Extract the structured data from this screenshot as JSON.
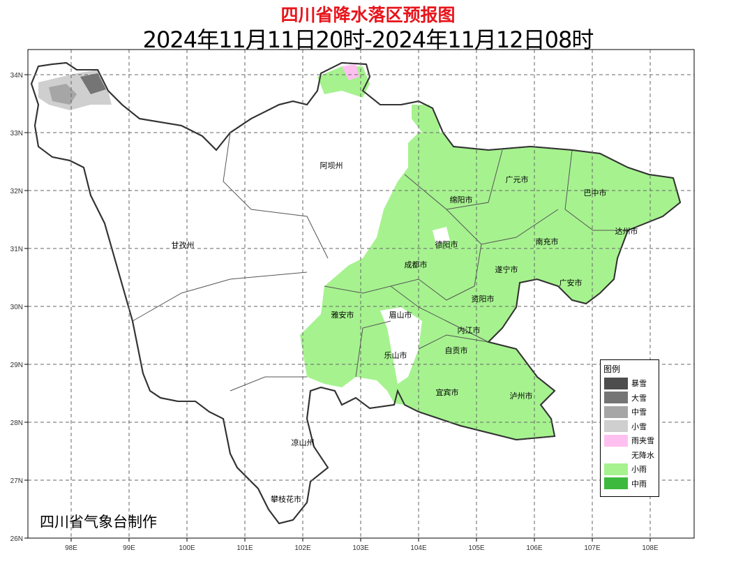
{
  "title": "四川省降水落区预报图",
  "subtitle": "2024年11月11日20时-2024年11月12日08时",
  "credit": "四川省气象台制作",
  "axes": {
    "x_ticks": [
      "98E",
      "99E",
      "100E",
      "101E",
      "102E",
      "103E",
      "104E",
      "105E",
      "106E",
      "107E",
      "108E"
    ],
    "y_ticks": [
      "34N",
      "33N",
      "32N",
      "31N",
      "30N",
      "29N",
      "28N",
      "27N",
      "26N"
    ]
  },
  "cities": [
    "阿坝州",
    "广元市",
    "巴中市",
    "绵阳市",
    "达州市",
    "甘孜州",
    "德阳市",
    "南充市",
    "成都市",
    "遂宁市",
    "广安市",
    "雅安市",
    "资阳市",
    "眉山市",
    "内江市",
    "自贡市",
    "乐山市",
    "宜宾市",
    "泸州市",
    "凉山州",
    "攀枝花市"
  ],
  "legend": {
    "title": "图例",
    "items": [
      {
        "label": "暴雪",
        "color": "#4d4d4d"
      },
      {
        "label": "大雪",
        "color": "#757575"
      },
      {
        "label": "中雪",
        "color": "#a6a6a6"
      },
      {
        "label": "小雪",
        "color": "#cfcfcf"
      },
      {
        "label": "雨夹雪",
        "color": "#ffc0f0"
      },
      {
        "label": "无降水",
        "color": "#ffffff"
      },
      {
        "label": "小雨",
        "color": "#a6f28f"
      },
      {
        "label": "中雨",
        "color": "#3dba3d"
      }
    ]
  }
}
